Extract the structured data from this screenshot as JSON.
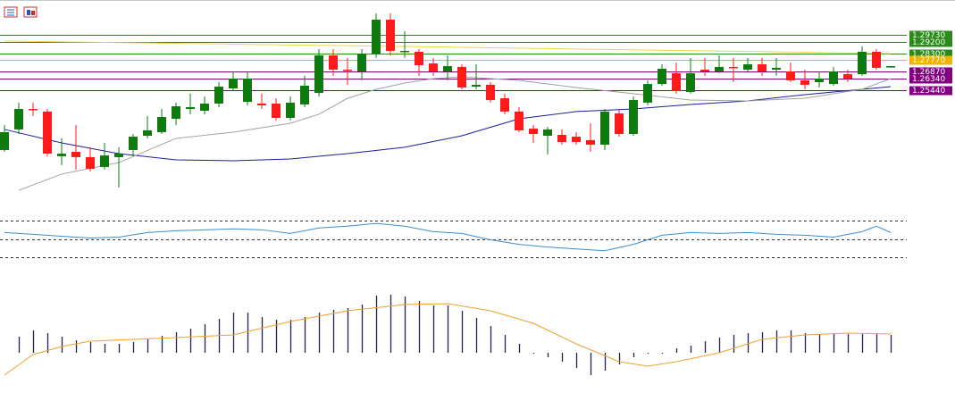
{
  "chart_data": [
    {
      "type": "candlestick",
      "open": [
        1.2083,
        1.2242,
        1.24,
        1.238,
        1.2035,
        1.2069,
        1.2028,
        1.1952,
        1.2028,
        1.2083,
        1.2193,
        1.2221,
        1.2324,
        1.24,
        1.2386,
        1.2442,
        1.2559,
        1.2455,
        1.2442,
        1.2442,
        1.2331,
        1.2435,
        1.2524,
        1.2814,
        1.2704,
        1.269,
        1.2828,
        1.309,
        1.2842,
        1.2842,
        1.2752,
        1.269,
        1.2725,
        1.2573,
        1.2587,
        1.2483,
        1.238,
        1.2248,
        1.2193,
        1.22,
        1.2186,
        1.2159,
        1.2124,
        1.2366,
        1.2207,
        1.2449,
        1.2593,
        1.2676,
        1.2531,
        1.2704,
        1.269,
        1.2725,
        1.2704,
        1.2745,
        1.2704,
        1.269,
        1.2621,
        1.2607,
        1.2593,
        1.2669,
        1.2669,
        1.2842,
        1.2725
      ],
      "high": [
        1.2276,
        1.2449,
        1.2449,
        1.24,
        1.2173,
        1.2276,
        1.2104,
        1.2138,
        1.2104,
        1.2207,
        1.2345,
        1.24,
        1.2449,
        1.2518,
        1.2497,
        1.2607,
        1.269,
        1.269,
        1.2518,
        1.2483,
        1.2497,
        1.2656,
        1.2863,
        1.2863,
        1.2794,
        1.2863,
        1.3139,
        1.3139,
        1.3001,
        1.2863,
        1.2794,
        1.2814,
        1.2745,
        1.2745,
        1.2607,
        1.2518,
        1.2414,
        1.2276,
        1.2262,
        1.2242,
        1.2221,
        1.229,
        1.24,
        1.24,
        1.2497,
        1.2621,
        1.2745,
        1.2759,
        1.2794,
        1.2794,
        1.2814,
        1.2794,
        1.2794,
        1.2794,
        1.2794,
        1.2759,
        1.2704,
        1.269,
        1.2725,
        1.2704,
        1.2883,
        1.2863,
        1.2731
      ],
      "low": [
        1.2069,
        1.2207,
        1.2345,
        1.2035,
        1.1966,
        1.1931,
        1.1917,
        1.1931,
        1.1793,
        1.2035,
        1.2173,
        1.2207,
        1.2276,
        1.2359,
        1.2359,
        1.2414,
        1.2538,
        1.2428,
        1.24,
        1.2311,
        1.2311,
        1.2414,
        1.2497,
        1.2656,
        1.2587,
        1.2621,
        1.2794,
        1.2814,
        1.2794,
        1.2656,
        1.2656,
        1.2621,
        1.2552,
        1.2552,
        1.2449,
        1.2359,
        1.2221,
        1.2138,
        1.2048,
        1.2124,
        1.2124,
        1.2069,
        1.2083,
        1.2186,
        1.2193,
        1.2428,
        1.258,
        1.2518,
        1.2518,
        1.2656,
        1.2676,
        1.2607,
        1.269,
        1.2656,
        1.2656,
        1.2607,
        1.2552,
        1.2566,
        1.258,
        1.2607,
        1.2656,
        1.2704,
        1.2718
      ],
      "close": [
        1.2221,
        1.24,
        1.2393,
        1.2055,
        1.2055,
        1.2028,
        1.1938,
        1.2041,
        1.2055,
        1.2186,
        1.2235,
        1.2338,
        1.2421,
        1.2414,
        1.2442,
        1.2573,
        1.2635,
        1.2635,
        1.2428,
        1.2331,
        1.2449,
        1.258,
        1.2814,
        1.2704,
        1.27,
        1.2828,
        1.309,
        1.2849,
        1.2849,
        1.2738,
        1.269,
        1.2731,
        1.2566,
        1.2587,
        1.2469,
        1.238,
        1.2235,
        1.2207,
        1.2242,
        1.2145,
        1.2145,
        1.2124,
        1.238,
        1.2207,
        1.2469,
        1.2593,
        1.2711,
        1.2538,
        1.2676,
        1.269,
        1.2725,
        1.2718,
        1.2745,
        1.269,
        1.2718,
        1.2621,
        1.2587,
        1.2635,
        1.269,
        1.2635,
        1.2842,
        1.2718,
        1.2731
      ],
      "up_color": "#0f7b0f",
      "down_color": "#ff1a1a",
      "ylim": [
        1.1655,
        1.3242
      ],
      "levels": [
        {
          "value": 1.2973,
          "label": "1.29730",
          "color": "#2b8a1a"
        },
        {
          "value": 1.292,
          "label": "1.29200",
          "color": "#2b8a1a"
        },
        {
          "value": 1.283,
          "label": "1.28300",
          "color": "#2b8a1a"
        },
        {
          "value": 1.2777,
          "label": "1.27770",
          "color": "#f0b400"
        },
        {
          "value": 1.2687,
          "label": "1.26870",
          "color": "#800080"
        },
        {
          "value": 1.2634,
          "label": "1.26340",
          "color": "#800080"
        },
        {
          "value": 1.2544,
          "label": "1.25440",
          "color": "#800080"
        }
      ],
      "overlays": [
        {
          "color": "#1c1ca0",
          "x": [
            0,
            4,
            8,
            12,
            16,
            20,
            24,
            28,
            32,
            36,
            40,
            44,
            48,
            52,
            56,
            60,
            62
          ],
          "values": [
            1.2242,
            1.2138,
            1.2055,
            1.2007,
            1.2,
            1.2014,
            1.2055,
            1.2104,
            1.2193,
            1.2324,
            1.238,
            1.24,
            1.2435,
            1.2462,
            1.2511,
            1.2552,
            1.2573
          ]
        },
        {
          "color": "#a0a0a0",
          "x": [
            1,
            4,
            8,
            12,
            16,
            20,
            22,
            24,
            26,
            28,
            30,
            32,
            36,
            40,
            44,
            48,
            52,
            56,
            60,
            62
          ],
          "values": [
            1.1772,
            1.1897,
            1.1986,
            1.2173,
            1.2221,
            1.229,
            1.2359,
            1.2483,
            1.2552,
            1.26,
            1.2635,
            1.2649,
            1.2621,
            1.2566,
            1.2518,
            1.2469,
            1.2462,
            1.2483,
            1.2552,
            1.2635
          ]
        },
        {
          "color": "#e8d44d",
          "x": [
            0,
            28,
            62
          ],
          "values": [
            1.2925,
            1.2883,
            1.2828
          ]
        }
      ]
    },
    {
      "type": "line",
      "ylim": [
        23,
        77
      ],
      "levels": [
        30,
        50,
        70
      ],
      "series": [
        {
          "color": "#3a8fd0",
          "x": [
            0,
            2,
            4,
            6,
            8,
            10,
            12,
            14,
            16,
            18,
            20,
            22,
            24,
            26,
            28,
            30,
            32,
            34,
            36,
            38,
            40,
            42,
            44,
            46,
            48,
            50,
            52,
            54,
            56,
            58,
            60,
            61,
            62
          ],
          "values": [
            57,
            55,
            53,
            51,
            52,
            57,
            59,
            60,
            61,
            60,
            56,
            62,
            64,
            67,
            64,
            58,
            56,
            49,
            44,
            41,
            39,
            37,
            44,
            54,
            57,
            56,
            57,
            55,
            54,
            52,
            58,
            64,
            57
          ]
        }
      ]
    },
    {
      "type": "bar",
      "ylim": [
        -30,
        70
      ],
      "color": "#1a1a8a",
      "values": [
        null,
        18,
        25,
        22,
        18,
        14,
        12,
        10,
        10,
        12,
        15,
        19,
        23,
        27,
        32,
        38,
        45,
        45,
        40,
        37,
        37,
        40,
        45,
        48,
        50,
        54,
        64,
        65,
        63,
        58,
        53,
        53,
        47,
        39,
        30,
        20,
        10,
        0,
        -5,
        -10,
        -17,
        -25,
        -20,
        -13,
        -5,
        -1,
        0,
        5,
        8,
        13,
        17,
        20,
        22,
        23,
        25,
        25,
        22,
        21,
        21,
        21,
        21,
        22,
        20
      ],
      "series": [
        {
          "color": "#f0a030",
          "x": [
            0,
            2,
            4,
            6,
            9,
            12,
            16,
            20,
            24,
            28,
            31,
            34,
            37,
            40,
            43,
            45,
            47,
            50,
            53,
            56,
            59,
            62
          ],
          "values": [
            -25,
            -2,
            7,
            13,
            15,
            17,
            20,
            35,
            47,
            54,
            55,
            47,
            33,
            10,
            -10,
            -15,
            -10,
            0,
            15,
            20,
            22,
            21
          ]
        }
      ]
    }
  ]
}
